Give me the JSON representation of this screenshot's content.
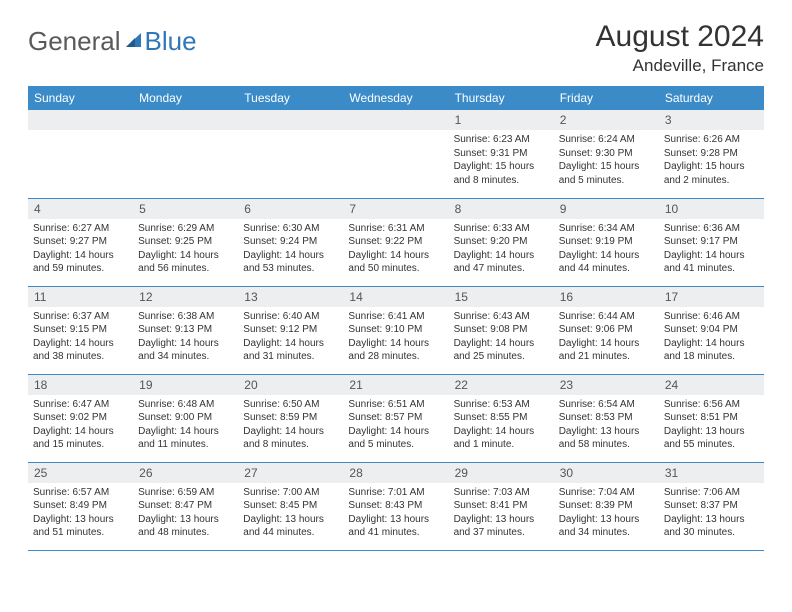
{
  "brand": {
    "part1": "General",
    "part2": "Blue"
  },
  "title": "August 2024",
  "location": "Andeville, France",
  "colors": {
    "header_bg": "#3b8bc9",
    "header_text": "#ffffff",
    "daynum_bg": "#eceef0",
    "border": "#3b8bc9",
    "body_text": "#333333",
    "brand_grey": "#5a5a5a",
    "brand_blue": "#2f77b6"
  },
  "daysOfWeek": [
    "Sunday",
    "Monday",
    "Tuesday",
    "Wednesday",
    "Thursday",
    "Friday",
    "Saturday"
  ],
  "weeks": [
    [
      {
        "n": "",
        "sr": "",
        "ss": "",
        "dl": ""
      },
      {
        "n": "",
        "sr": "",
        "ss": "",
        "dl": ""
      },
      {
        "n": "",
        "sr": "",
        "ss": "",
        "dl": ""
      },
      {
        "n": "",
        "sr": "",
        "ss": "",
        "dl": ""
      },
      {
        "n": "1",
        "sr": "Sunrise: 6:23 AM",
        "ss": "Sunset: 9:31 PM",
        "dl": "Daylight: 15 hours and 8 minutes."
      },
      {
        "n": "2",
        "sr": "Sunrise: 6:24 AM",
        "ss": "Sunset: 9:30 PM",
        "dl": "Daylight: 15 hours and 5 minutes."
      },
      {
        "n": "3",
        "sr": "Sunrise: 6:26 AM",
        "ss": "Sunset: 9:28 PM",
        "dl": "Daylight: 15 hours and 2 minutes."
      }
    ],
    [
      {
        "n": "4",
        "sr": "Sunrise: 6:27 AM",
        "ss": "Sunset: 9:27 PM",
        "dl": "Daylight: 14 hours and 59 minutes."
      },
      {
        "n": "5",
        "sr": "Sunrise: 6:29 AM",
        "ss": "Sunset: 9:25 PM",
        "dl": "Daylight: 14 hours and 56 minutes."
      },
      {
        "n": "6",
        "sr": "Sunrise: 6:30 AM",
        "ss": "Sunset: 9:24 PM",
        "dl": "Daylight: 14 hours and 53 minutes."
      },
      {
        "n": "7",
        "sr": "Sunrise: 6:31 AM",
        "ss": "Sunset: 9:22 PM",
        "dl": "Daylight: 14 hours and 50 minutes."
      },
      {
        "n": "8",
        "sr": "Sunrise: 6:33 AM",
        "ss": "Sunset: 9:20 PM",
        "dl": "Daylight: 14 hours and 47 minutes."
      },
      {
        "n": "9",
        "sr": "Sunrise: 6:34 AM",
        "ss": "Sunset: 9:19 PM",
        "dl": "Daylight: 14 hours and 44 minutes."
      },
      {
        "n": "10",
        "sr": "Sunrise: 6:36 AM",
        "ss": "Sunset: 9:17 PM",
        "dl": "Daylight: 14 hours and 41 minutes."
      }
    ],
    [
      {
        "n": "11",
        "sr": "Sunrise: 6:37 AM",
        "ss": "Sunset: 9:15 PM",
        "dl": "Daylight: 14 hours and 38 minutes."
      },
      {
        "n": "12",
        "sr": "Sunrise: 6:38 AM",
        "ss": "Sunset: 9:13 PM",
        "dl": "Daylight: 14 hours and 34 minutes."
      },
      {
        "n": "13",
        "sr": "Sunrise: 6:40 AM",
        "ss": "Sunset: 9:12 PM",
        "dl": "Daylight: 14 hours and 31 minutes."
      },
      {
        "n": "14",
        "sr": "Sunrise: 6:41 AM",
        "ss": "Sunset: 9:10 PM",
        "dl": "Daylight: 14 hours and 28 minutes."
      },
      {
        "n": "15",
        "sr": "Sunrise: 6:43 AM",
        "ss": "Sunset: 9:08 PM",
        "dl": "Daylight: 14 hours and 25 minutes."
      },
      {
        "n": "16",
        "sr": "Sunrise: 6:44 AM",
        "ss": "Sunset: 9:06 PM",
        "dl": "Daylight: 14 hours and 21 minutes."
      },
      {
        "n": "17",
        "sr": "Sunrise: 6:46 AM",
        "ss": "Sunset: 9:04 PM",
        "dl": "Daylight: 14 hours and 18 minutes."
      }
    ],
    [
      {
        "n": "18",
        "sr": "Sunrise: 6:47 AM",
        "ss": "Sunset: 9:02 PM",
        "dl": "Daylight: 14 hours and 15 minutes."
      },
      {
        "n": "19",
        "sr": "Sunrise: 6:48 AM",
        "ss": "Sunset: 9:00 PM",
        "dl": "Daylight: 14 hours and 11 minutes."
      },
      {
        "n": "20",
        "sr": "Sunrise: 6:50 AM",
        "ss": "Sunset: 8:59 PM",
        "dl": "Daylight: 14 hours and 8 minutes."
      },
      {
        "n": "21",
        "sr": "Sunrise: 6:51 AM",
        "ss": "Sunset: 8:57 PM",
        "dl": "Daylight: 14 hours and 5 minutes."
      },
      {
        "n": "22",
        "sr": "Sunrise: 6:53 AM",
        "ss": "Sunset: 8:55 PM",
        "dl": "Daylight: 14 hours and 1 minute."
      },
      {
        "n": "23",
        "sr": "Sunrise: 6:54 AM",
        "ss": "Sunset: 8:53 PM",
        "dl": "Daylight: 13 hours and 58 minutes."
      },
      {
        "n": "24",
        "sr": "Sunrise: 6:56 AM",
        "ss": "Sunset: 8:51 PM",
        "dl": "Daylight: 13 hours and 55 minutes."
      }
    ],
    [
      {
        "n": "25",
        "sr": "Sunrise: 6:57 AM",
        "ss": "Sunset: 8:49 PM",
        "dl": "Daylight: 13 hours and 51 minutes."
      },
      {
        "n": "26",
        "sr": "Sunrise: 6:59 AM",
        "ss": "Sunset: 8:47 PM",
        "dl": "Daylight: 13 hours and 48 minutes."
      },
      {
        "n": "27",
        "sr": "Sunrise: 7:00 AM",
        "ss": "Sunset: 8:45 PM",
        "dl": "Daylight: 13 hours and 44 minutes."
      },
      {
        "n": "28",
        "sr": "Sunrise: 7:01 AM",
        "ss": "Sunset: 8:43 PM",
        "dl": "Daylight: 13 hours and 41 minutes."
      },
      {
        "n": "29",
        "sr": "Sunrise: 7:03 AM",
        "ss": "Sunset: 8:41 PM",
        "dl": "Daylight: 13 hours and 37 minutes."
      },
      {
        "n": "30",
        "sr": "Sunrise: 7:04 AM",
        "ss": "Sunset: 8:39 PM",
        "dl": "Daylight: 13 hours and 34 minutes."
      },
      {
        "n": "31",
        "sr": "Sunrise: 7:06 AM",
        "ss": "Sunset: 8:37 PM",
        "dl": "Daylight: 13 hours and 30 minutes."
      }
    ]
  ]
}
